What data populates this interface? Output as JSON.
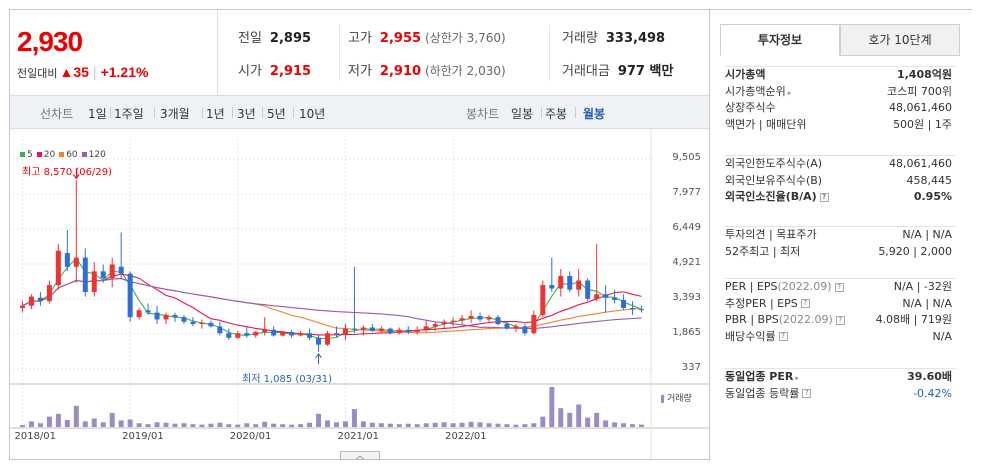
{
  "price": {
    "current": "2,930",
    "change_label": "전일대비",
    "change_arrow": "▲",
    "change_amount": "35",
    "change_pct": "+1.21%"
  },
  "quote": {
    "prev_close_label": "전일",
    "prev_close": "2,895",
    "high_label": "고가",
    "high": "2,955",
    "upper_limit": "(상한가 3,760)",
    "volume_label": "거래량",
    "volume": "333,498",
    "open_label": "시가",
    "open": "2,915",
    "low_label": "저가",
    "low": "2,910",
    "lower_limit": "(하한가 2,030)",
    "amount_label": "거래대금",
    "amount": "977 백만"
  },
  "periods": {
    "line_label": "선차트",
    "line_items": [
      "1일",
      "1주일",
      "3개월",
      "1년",
      "3년",
      "5년",
      "10년"
    ],
    "candle_label": "봉차트",
    "candle_items": [
      "일봉",
      "주봉",
      "월봉"
    ],
    "active_candle": "월봉"
  },
  "legend": [
    {
      "label": "5",
      "color": "#3cb44b"
    },
    {
      "label": "20",
      "color": "#e6194b"
    },
    {
      "label": "60",
      "color": "#f58231"
    },
    {
      "label": "120",
      "color": "#9b59b6"
    }
  ],
  "annotations": {
    "high": "최고 8,570 (06/29)",
    "low": "최저 1,085 (03/31)"
  },
  "volume_legend": "거래량",
  "chart_data": {
    "type": "bar",
    "title": "",
    "yticks": [
      "9,505",
      "7,977",
      "6,449",
      "4,921",
      "3,393",
      "1,865",
      "337"
    ],
    "ylim": [
      337,
      9505
    ],
    "xticks": [
      "2018/01",
      "2019/01",
      "2020/01",
      "2021/01",
      "2022/01"
    ],
    "candles": [
      [
        3000,
        3300,
        2800,
        3100
      ],
      [
        3100,
        3600,
        2950,
        3500
      ],
      [
        3450,
        3700,
        3100,
        3300
      ],
      [
        3300,
        4200,
        3200,
        4000
      ],
      [
        4000,
        5800,
        3800,
        5500
      ],
      [
        5400,
        6400,
        4600,
        4800
      ],
      [
        4800,
        8570,
        4100,
        5200
      ],
      [
        5200,
        5600,
        3500,
        3700
      ],
      [
        3700,
        5000,
        3500,
        4600
      ],
      [
        4600,
        4900,
        4100,
        4300
      ],
      [
        4300,
        5200,
        3900,
        4900
      ],
      [
        4800,
        6300,
        4300,
        4500
      ],
      [
        4500,
        4600,
        2400,
        2600
      ],
      [
        2600,
        3000,
        2500,
        2900
      ],
      [
        2900,
        3200,
        2700,
        2800
      ],
      [
        2800,
        3100,
        2300,
        2500
      ],
      [
        2500,
        2800,
        2300,
        2700
      ],
      [
        2700,
        2800,
        2400,
        2600
      ],
      [
        2600,
        2700,
        2300,
        2400
      ],
      [
        2400,
        2600,
        2200,
        2300
      ],
      [
        2300,
        2500,
        2100,
        2350
      ],
      [
        2350,
        2450,
        2150,
        2200
      ],
      [
        2200,
        2400,
        1800,
        1900
      ],
      [
        1900,
        2100,
        1600,
        1700
      ],
      [
        1700,
        2000,
        1650,
        1900
      ],
      [
        1900,
        2200,
        1700,
        1800
      ],
      [
        1800,
        2000,
        1700,
        1950
      ],
      [
        1950,
        2600,
        1800,
        2050
      ],
      [
        2050,
        2200,
        1750,
        1800
      ],
      [
        1800,
        2000,
        1750,
        1950
      ],
      [
        1950,
        2050,
        1700,
        1800
      ],
      [
        1800,
        2000,
        1750,
        1900
      ],
      [
        1900,
        2100,
        1600,
        1700
      ],
      [
        1700,
        1800,
        1085,
        1400
      ],
      [
        1400,
        2000,
        1350,
        1900
      ],
      [
        1900,
        2200,
        1700,
        1850
      ],
      [
        1850,
        2300,
        1600,
        2100
      ],
      [
        2100,
        4800,
        1900,
        2050
      ],
      [
        2050,
        2250,
        1800,
        2150
      ],
      [
        2150,
        2300,
        1950,
        2000
      ],
      [
        2000,
        2200,
        1900,
        2100
      ],
      [
        2100,
        2150,
        1850,
        1900
      ],
      [
        1900,
        2150,
        1850,
        2050
      ],
      [
        2050,
        2200,
        1850,
        1950
      ],
      [
        1950,
        2200,
        1850,
        2050
      ],
      [
        2050,
        2450,
        1950,
        2200
      ],
      [
        2200,
        2400,
        2000,
        2300
      ],
      [
        2300,
        2500,
        2100,
        2400
      ],
      [
        2400,
        2600,
        2200,
        2450
      ],
      [
        2450,
        2700,
        2300,
        2550
      ],
      [
        2550,
        2900,
        2350,
        2650
      ],
      [
        2650,
        2800,
        2400,
        2500
      ],
      [
        2500,
        2700,
        2350,
        2600
      ],
      [
        2600,
        2700,
        2250,
        2300
      ],
      [
        2300,
        2400,
        2050,
        2100
      ],
      [
        2100,
        2300,
        1950,
        2200
      ],
      [
        2200,
        2300,
        1800,
        1900
      ],
      [
        1900,
        2900,
        1850,
        2700
      ],
      [
        2700,
        4200,
        2600,
        4000
      ],
      [
        4000,
        5200,
        3700,
        3850
      ],
      [
        3850,
        4700,
        3500,
        4400
      ],
      [
        4400,
        4600,
        3700,
        3800
      ],
      [
        3800,
        4700,
        3500,
        4200
      ],
      [
        4200,
        4300,
        3300,
        3400
      ],
      [
        3400,
        5800,
        3300,
        3600
      ],
      [
        3600,
        4000,
        2800,
        3450
      ],
      [
        3450,
        3800,
        3200,
        3350
      ],
      [
        3350,
        3600,
        2900,
        3000
      ],
      [
        3000,
        3300,
        2700,
        2950
      ],
      [
        2950,
        3100,
        2800,
        2930
      ]
    ],
    "volumes": [
      4,
      12,
      8,
      22,
      28,
      15,
      45,
      12,
      18,
      10,
      30,
      14,
      16,
      8,
      6,
      10,
      9,
      7,
      8,
      6,
      5,
      7,
      9,
      6,
      5,
      8,
      6,
      11,
      7,
      6,
      5,
      6,
      9,
      28,
      14,
      10,
      12,
      38,
      12,
      9,
      8,
      7,
      6,
      7,
      6,
      8,
      9,
      10,
      8,
      9,
      11,
      10,
      8,
      7,
      6,
      5,
      6,
      8,
      22,
      85,
      40,
      30,
      48,
      20,
      30,
      14,
      10,
      8,
      6,
      5
    ]
  },
  "tabs": {
    "info": "투자정보",
    "orderbook": "호가 10단계"
  },
  "info_group1": [
    {
      "label": "시가총액",
      "value": "1,408억원",
      "bold": true
    },
    {
      "label": "시가총액순위",
      "value": "코스피 700위",
      "arrow": true
    },
    {
      "label": "상장주식수",
      "value": "48,061,460"
    },
    {
      "label": "액면가 | 매매단위",
      "value": "500원 | 1주"
    }
  ],
  "info_group2": [
    {
      "label": "외국인한도주식수(A)",
      "value": "48,061,460"
    },
    {
      "label": "외국인보유주식수(B)",
      "value": "458,445"
    },
    {
      "label": "외국인소진율(B/A)",
      "value": "0.95%",
      "bold": true,
      "help": true
    }
  ],
  "info_group3": [
    {
      "label": "투자의견 | 목표주가",
      "value": "N/A | N/A"
    },
    {
      "label": "52주최고 | 최저",
      "value": "5,920 | 2,000"
    }
  ],
  "info_group4": [
    {
      "label": "PER | EPS",
      "note": "(2022.09)",
      "value": "N/A | -32원",
      "help": true
    },
    {
      "label": "추정PER | EPS",
      "value": "N/A | N/A",
      "help": true
    },
    {
      "label": "PBR | BPS",
      "note": "(2022.09)",
      "value": "4.08배 | 719원",
      "help": true
    },
    {
      "label": "배당수익률",
      "value": "N/A",
      "help": true
    }
  ],
  "info_group5": [
    {
      "label": "동일업종 PER",
      "value": "39.60배",
      "bold": true,
      "arrow": true
    },
    {
      "label": "동일업종 등락률",
      "value": "-0.42%",
      "blue": true,
      "help": true
    }
  ],
  "help_glyph": "?",
  "arrow_glyph": "▸",
  "scroll_glyph": "︿"
}
